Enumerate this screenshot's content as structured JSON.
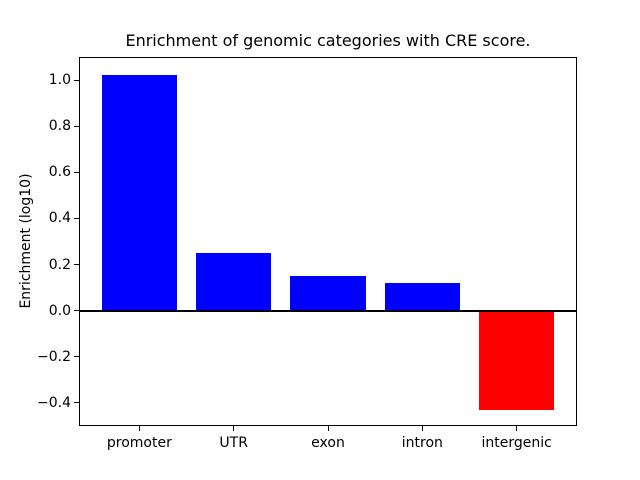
{
  "chart_data": {
    "type": "bar",
    "title": "Enrichment of genomic categories with CRE score.",
    "ylabel": "Enrichment (log10)",
    "xlabel": "",
    "categories": [
      "promoter",
      "UTR",
      "exon",
      "intron",
      "intergenic"
    ],
    "values": [
      1.02,
      0.25,
      0.15,
      0.12,
      -0.43
    ],
    "bar_colors": [
      "#0000ff",
      "#0000ff",
      "#0000ff",
      "#0000ff",
      "#ff0000"
    ],
    "positive_color": "#0000ff",
    "negative_color": "#ff0000",
    "zero_line_color": "#000000",
    "axis_color": "#000000",
    "background_color": "#ffffff",
    "yticks": [
      1.0,
      0.8,
      0.6,
      0.4,
      0.2,
      0.0,
      -0.2,
      -0.4
    ],
    "ylim": [
      -0.5,
      1.1
    ],
    "xlim": [
      -0.64,
      4.64
    ],
    "bar_width": 0.8,
    "grid": false,
    "legend": "none"
  }
}
